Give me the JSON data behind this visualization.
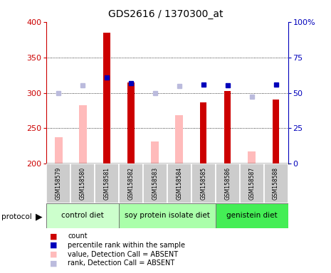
{
  "title": "GDS2616 / 1370300_at",
  "samples": [
    "GSM158579",
    "GSM158580",
    "GSM158581",
    "GSM158582",
    "GSM158583",
    "GSM158584",
    "GSM158585",
    "GSM158586",
    "GSM158587",
    "GSM158588"
  ],
  "count_values": [
    null,
    null,
    385,
    315,
    null,
    null,
    287,
    303,
    null,
    291
  ],
  "value_absent": [
    237,
    283,
    null,
    null,
    231,
    269,
    null,
    null,
    217,
    null
  ],
  "rank_absent_left": [
    300,
    311,
    null,
    null,
    300,
    310,
    null,
    null,
    295,
    null
  ],
  "percentile_rank_left": [
    null,
    null,
    322,
    314,
    null,
    null,
    312,
    311,
    null,
    312
  ],
  "ylim_left": [
    200,
    400
  ],
  "yticks_left": [
    200,
    250,
    300,
    350,
    400
  ],
  "yticks_right": [
    0,
    25,
    50,
    75,
    100
  ],
  "ytick_labels_right": [
    "0",
    "25",
    "50",
    "75",
    "100%"
  ],
  "color_count": "#cc0000",
  "color_percentile": "#0000bb",
  "color_value_absent": "#ffbbbb",
  "color_rank_absent": "#bbbbdd",
  "left_axis_color": "#cc0000",
  "right_axis_color": "#0000bb",
  "group_defs": [
    {
      "label": "control diet",
      "start": 0,
      "end": 2,
      "color": "#ccffcc"
    },
    {
      "label": "soy protein isolate diet",
      "start": 3,
      "end": 6,
      "color": "#aaffaa"
    },
    {
      "label": "genistein diet",
      "start": 7,
      "end": 9,
      "color": "#44ee55"
    }
  ],
  "legend_items": [
    {
      "label": "count",
      "color": "#cc0000"
    },
    {
      "label": "percentile rank within the sample",
      "color": "#0000bb"
    },
    {
      "label": "value, Detection Call = ABSENT",
      "color": "#ffbbbb"
    },
    {
      "label": "rank, Detection Call = ABSENT",
      "color": "#bbbbdd"
    }
  ]
}
